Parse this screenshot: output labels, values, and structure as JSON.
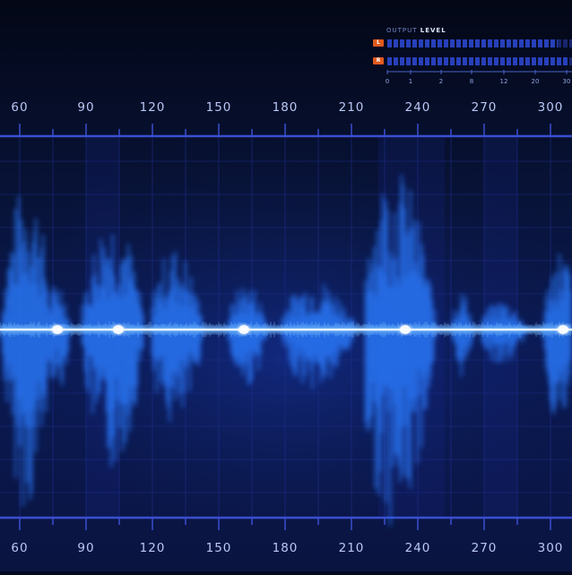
{
  "output_meter": {
    "title_prefix": "OUTPUT",
    "title_bold": "LEVEL",
    "channels": [
      {
        "label": "L",
        "level": 0.92
      },
      {
        "label": "R",
        "level": 0.98
      }
    ],
    "scale": [
      "0",
      "1",
      "2",
      "8",
      "12",
      "20",
      "30"
    ]
  },
  "timeline": {
    "ticks": [
      "60",
      "90",
      "120",
      "150",
      "180",
      "210",
      "240",
      "270",
      "300"
    ]
  },
  "colors": {
    "background": "#040a22",
    "grid": "#1f2f8f",
    "axis": "#3a4fd0",
    "wave_core": "#e8f6ff",
    "wave_glow": "#2b7bff",
    "channel_tag": "#e05a1e"
  }
}
